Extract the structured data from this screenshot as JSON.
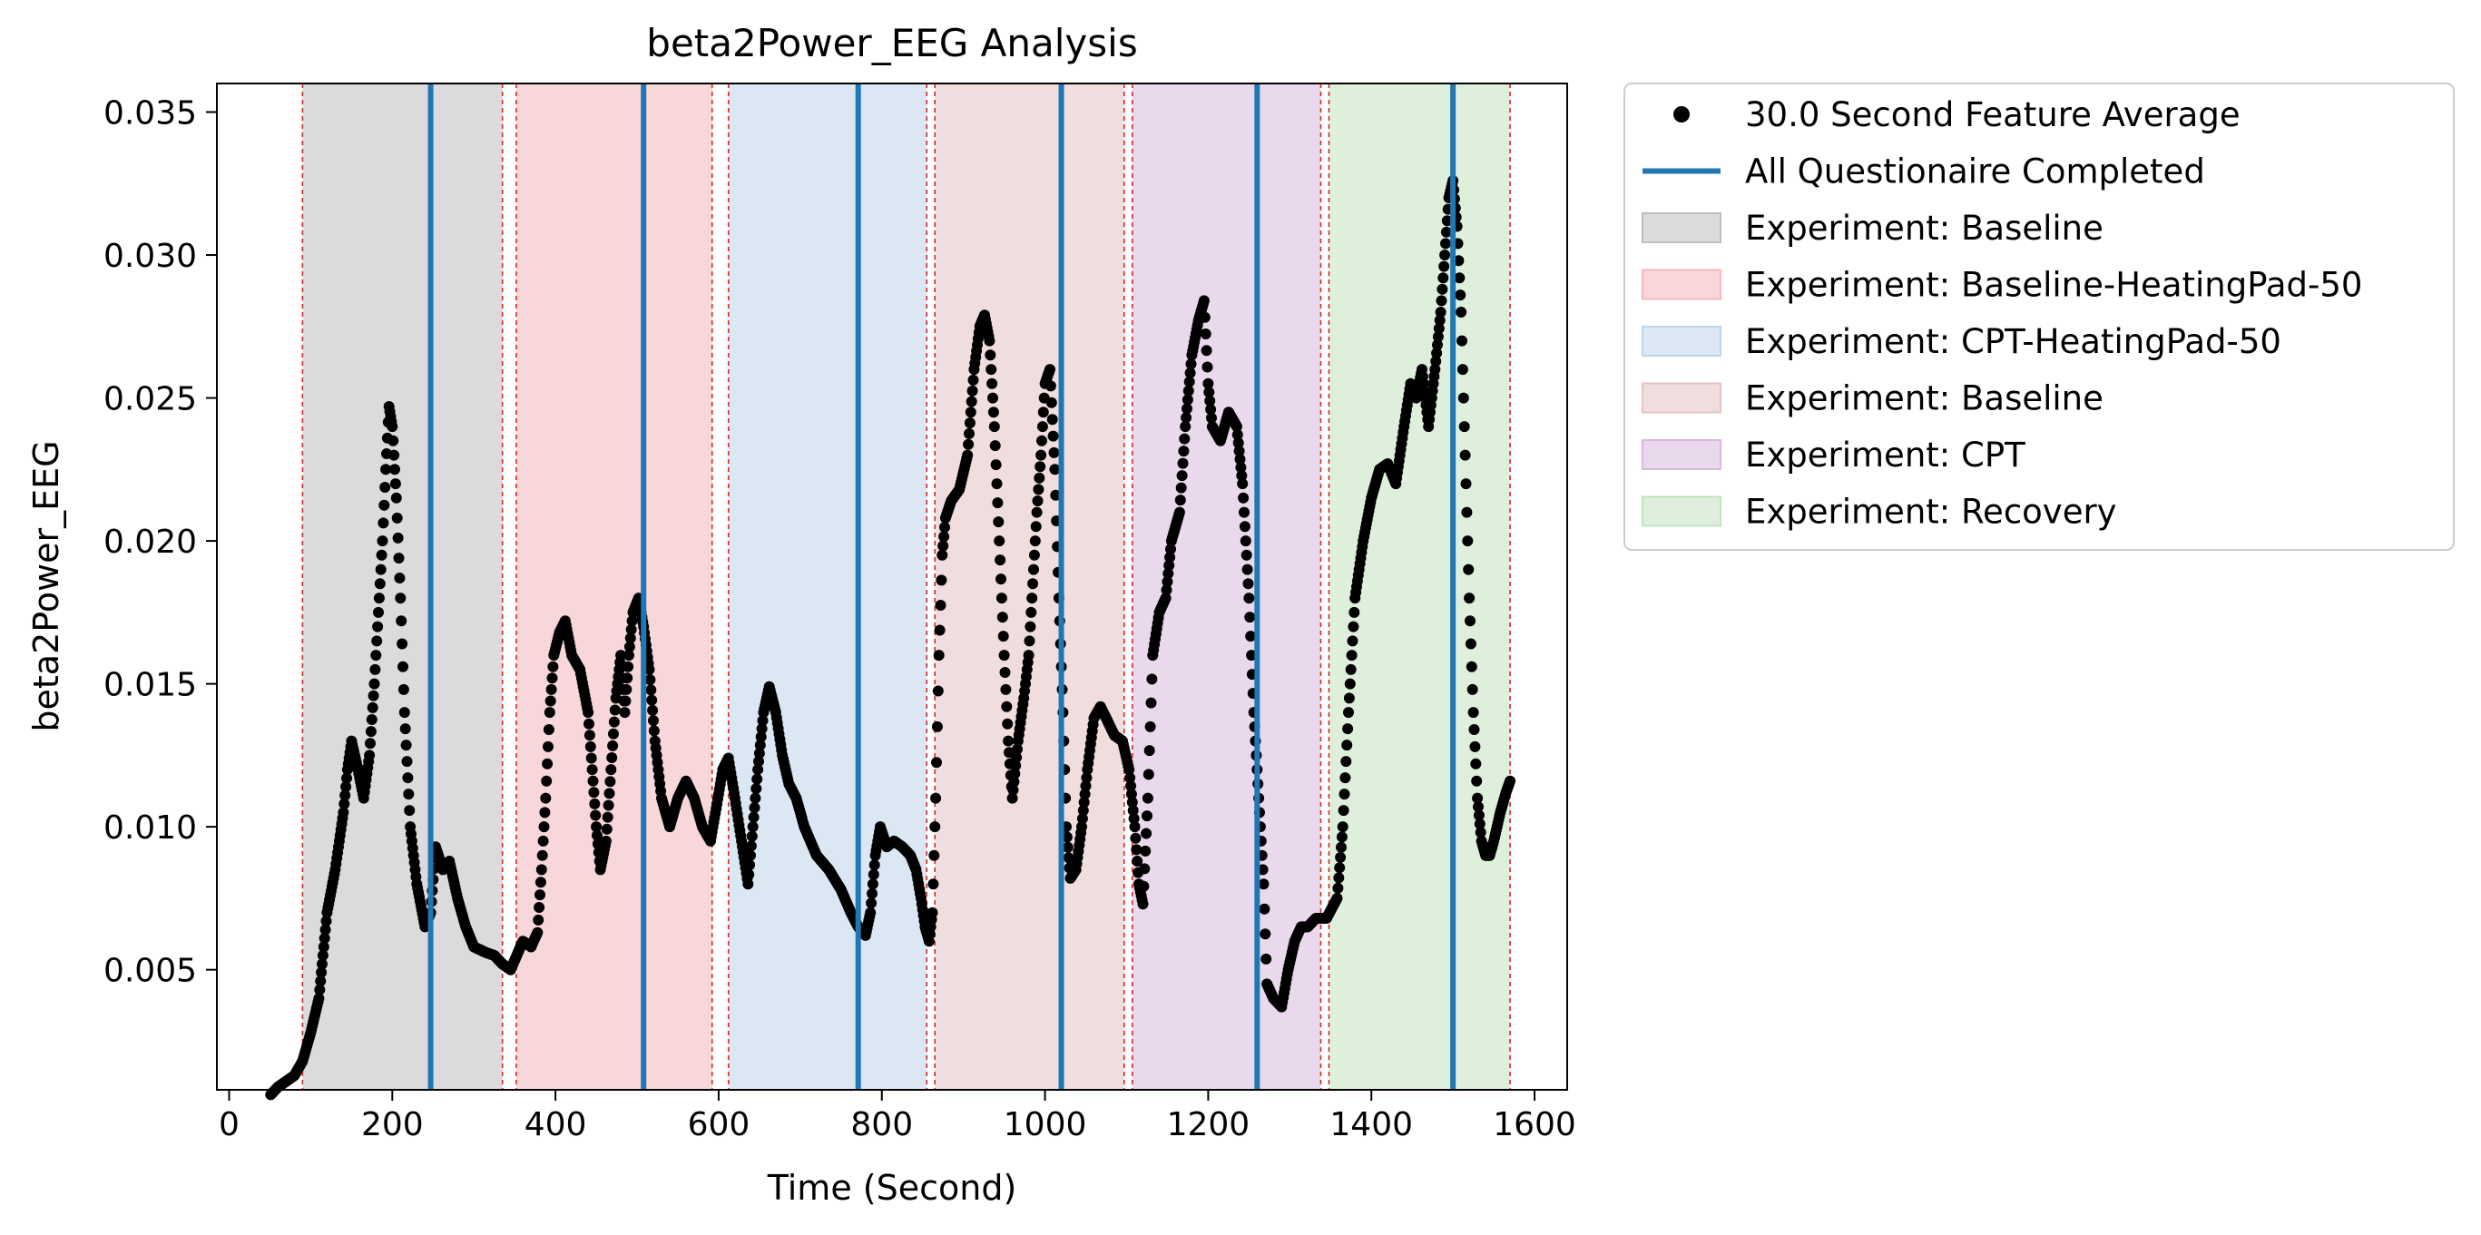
{
  "chart_data": {
    "type": "scatter",
    "title": "beta2Power_EEG Analysis",
    "xlabel": "Time (Second)",
    "ylabel": "beta2Power_EEG",
    "xlim": [
      -15,
      1640
    ],
    "ylim": [
      0.0008,
      0.036
    ],
    "xticks": [
      0,
      200,
      400,
      600,
      800,
      1000,
      1200,
      1400,
      1600
    ],
    "yticks": [
      0.005,
      0.01,
      0.015,
      0.02,
      0.025,
      0.03,
      0.035
    ],
    "ytick_labels": [
      "0.005",
      "0.010",
      "0.015",
      "0.020",
      "0.025",
      "0.030",
      "0.035"
    ],
    "grid": false,
    "legend_placement": "outside-right-top",
    "legend": [
      {
        "label": "30.0 Second Feature Average",
        "kind": "marker",
        "color": "#000000"
      },
      {
        "label": "All Questionaire Completed",
        "kind": "line",
        "color": "#1f77b4"
      },
      {
        "label": "Experiment: Baseline",
        "kind": "patch",
        "color": "#bdbdbd"
      },
      {
        "label": "Experiment: Baseline-HeatingPad-50",
        "kind": "patch",
        "color": "#f3b7bd"
      },
      {
        "label": "Experiment: CPT-HeatingPad-50",
        "kind": "patch",
        "color": "#bdd5ea"
      },
      {
        "label": "Experiment: Baseline",
        "kind": "patch",
        "color": "#e3c3c3"
      },
      {
        "label": "Experiment: CPT",
        "kind": "patch",
        "color": "#d8b8dc"
      },
      {
        "label": "Experiment: Recovery",
        "kind": "patch",
        "color": "#c2e3be"
      }
    ],
    "segments": [
      {
        "label": "Experiment: Baseline",
        "start": 90,
        "end": 335,
        "color": "#bdbdbd"
      },
      {
        "label": "Experiment: Baseline-HeatingPad-50",
        "start": 352,
        "end": 592,
        "color": "#f3b7bd"
      },
      {
        "label": "Experiment: CPT-HeatingPad-50",
        "start": 612,
        "end": 855,
        "color": "#bdd5ea"
      },
      {
        "label": "Experiment: Baseline",
        "start": 865,
        "end": 1097,
        "color": "#e3c3c3"
      },
      {
        "label": "Experiment: CPT",
        "start": 1107,
        "end": 1338,
        "color": "#d8b8dc"
      },
      {
        "label": "Experiment: Recovery",
        "start": 1348,
        "end": 1570,
        "color": "#c2e3be"
      }
    ],
    "segment_boundaries": [
      90,
      335,
      352,
      592,
      612,
      855,
      865,
      1097,
      1107,
      1338,
      1348,
      1570
    ],
    "questionnaire_completed": [
      247,
      508,
      771,
      1020,
      1260,
      1500
    ],
    "series": [
      {
        "label": "30.0 Second Feature Average",
        "color": "#000000",
        "points": [
          [
            50,
            0.0006
          ],
          [
            60,
            0.0009
          ],
          [
            70,
            0.0011
          ],
          [
            80,
            0.0013
          ],
          [
            90,
            0.0018
          ],
          [
            100,
            0.0028
          ],
          [
            110,
            0.004
          ],
          [
            120,
            0.007
          ],
          [
            130,
            0.0085
          ],
          [
            140,
            0.0105
          ],
          [
            145,
            0.012
          ],
          [
            150,
            0.013
          ],
          [
            158,
            0.012
          ],
          [
            165,
            0.011
          ],
          [
            172,
            0.0125
          ],
          [
            178,
            0.015
          ],
          [
            183,
            0.0175
          ],
          [
            188,
            0.02
          ],
          [
            192,
            0.0225
          ],
          [
            196,
            0.0247
          ],
          [
            200,
            0.024
          ],
          [
            205,
            0.0215
          ],
          [
            210,
            0.018
          ],
          [
            215,
            0.014
          ],
          [
            222,
            0.01
          ],
          [
            230,
            0.008
          ],
          [
            240,
            0.0065
          ],
          [
            247,
            0.007
          ],
          [
            253,
            0.0093
          ],
          [
            262,
            0.0085
          ],
          [
            270,
            0.0088
          ],
          [
            280,
            0.0075
          ],
          [
            290,
            0.0065
          ],
          [
            300,
            0.0058
          ],
          [
            315,
            0.0056
          ],
          [
            325,
            0.0055
          ],
          [
            335,
            0.0052
          ],
          [
            345,
            0.005
          ],
          [
            360,
            0.006
          ],
          [
            370,
            0.0058
          ],
          [
            378,
            0.0063
          ],
          [
            383,
            0.0085
          ],
          [
            388,
            0.011
          ],
          [
            393,
            0.014
          ],
          [
            398,
            0.016
          ],
          [
            405,
            0.0168
          ],
          [
            412,
            0.0172
          ],
          [
            420,
            0.016
          ],
          [
            430,
            0.0155
          ],
          [
            440,
            0.014
          ],
          [
            445,
            0.012
          ],
          [
            450,
            0.01
          ],
          [
            455,
            0.0085
          ],
          [
            462,
            0.0095
          ],
          [
            468,
            0.012
          ],
          [
            474,
            0.0145
          ],
          [
            480,
            0.016
          ],
          [
            485,
            0.014
          ],
          [
            490,
            0.016
          ],
          [
            495,
            0.0175
          ],
          [
            502,
            0.018
          ],
          [
            508,
            0.017
          ],
          [
            515,
            0.0155
          ],
          [
            522,
            0.013
          ],
          [
            530,
            0.011
          ],
          [
            540,
            0.01
          ],
          [
            550,
            0.011
          ],
          [
            560,
            0.0116
          ],
          [
            570,
            0.011
          ],
          [
            580,
            0.01
          ],
          [
            590,
            0.0095
          ],
          [
            598,
            0.0108
          ],
          [
            605,
            0.012
          ],
          [
            612,
            0.0124
          ],
          [
            620,
            0.011
          ],
          [
            628,
            0.0095
          ],
          [
            636,
            0.008
          ],
          [
            642,
            0.01
          ],
          [
            648,
            0.012
          ],
          [
            655,
            0.014
          ],
          [
            662,
            0.0149
          ],
          [
            670,
            0.014
          ],
          [
            678,
            0.0125
          ],
          [
            686,
            0.0115
          ],
          [
            695,
            0.011
          ],
          [
            705,
            0.01
          ],
          [
            720,
            0.009
          ],
          [
            735,
            0.0085
          ],
          [
            750,
            0.0078
          ],
          [
            762,
            0.007
          ],
          [
            771,
            0.0065
          ],
          [
            780,
            0.0062
          ],
          [
            786,
            0.007
          ],
          [
            792,
            0.009
          ],
          [
            798,
            0.01
          ],
          [
            806,
            0.0093
          ],
          [
            815,
            0.0095
          ],
          [
            825,
            0.0093
          ],
          [
            835,
            0.009
          ],
          [
            842,
            0.0085
          ],
          [
            848,
            0.0075
          ],
          [
            853,
            0.0065
          ],
          [
            858,
            0.006
          ],
          [
            862,
            0.007
          ],
          [
            866,
            0.011
          ],
          [
            870,
            0.016
          ],
          [
            874,
            0.0195
          ],
          [
            878,
            0.0208
          ],
          [
            885,
            0.0214
          ],
          [
            895,
            0.0218
          ],
          [
            905,
            0.023
          ],
          [
            913,
            0.026
          ],
          [
            920,
            0.0275
          ],
          [
            926,
            0.0279
          ],
          [
            932,
            0.027
          ],
          [
            938,
            0.024
          ],
          [
            944,
            0.02
          ],
          [
            950,
            0.016
          ],
          [
            955,
            0.013
          ],
          [
            960,
            0.011
          ],
          [
            967,
            0.013
          ],
          [
            974,
            0.0145
          ],
          [
            980,
            0.016
          ],
          [
            985,
            0.0185
          ],
          [
            990,
            0.021
          ],
          [
            995,
            0.023
          ],
          [
            1000,
            0.0255
          ],
          [
            1006,
            0.026
          ],
          [
            1012,
            0.0225
          ],
          [
            1017,
            0.018
          ],
          [
            1022,
            0.014
          ],
          [
            1026,
            0.01
          ],
          [
            1031,
            0.0082
          ],
          [
            1038,
            0.0085
          ],
          [
            1045,
            0.01
          ],
          [
            1052,
            0.012
          ],
          [
            1060,
            0.0138
          ],
          [
            1068,
            0.0142
          ],
          [
            1075,
            0.0138
          ],
          [
            1085,
            0.0132
          ],
          [
            1095,
            0.013
          ],
          [
            1103,
            0.012
          ],
          [
            1110,
            0.01
          ],
          [
            1115,
            0.008
          ],
          [
            1120,
            0.0073
          ],
          [
            1126,
            0.011
          ],
          [
            1132,
            0.016
          ],
          [
            1140,
            0.0175
          ],
          [
            1148,
            0.018
          ],
          [
            1155,
            0.02
          ],
          [
            1165,
            0.021
          ],
          [
            1172,
            0.024
          ],
          [
            1180,
            0.0265
          ],
          [
            1188,
            0.0277
          ],
          [
            1195,
            0.0284
          ],
          [
            1200,
            0.0255
          ],
          [
            1205,
            0.024
          ],
          [
            1215,
            0.0235
          ],
          [
            1225,
            0.0245
          ],
          [
            1235,
            0.024
          ],
          [
            1242,
            0.022
          ],
          [
            1250,
            0.018
          ],
          [
            1256,
            0.014
          ],
          [
            1262,
            0.011
          ],
          [
            1268,
            0.008
          ],
          [
            1272,
            0.0045
          ],
          [
            1280,
            0.004
          ],
          [
            1290,
            0.0037
          ],
          [
            1298,
            0.005
          ],
          [
            1306,
            0.006
          ],
          [
            1314,
            0.0065
          ],
          [
            1322,
            0.0065
          ],
          [
            1332,
            0.0068
          ],
          [
            1345,
            0.0068
          ],
          [
            1358,
            0.0075
          ],
          [
            1365,
            0.01
          ],
          [
            1372,
            0.014
          ],
          [
            1380,
            0.018
          ],
          [
            1390,
            0.02
          ],
          [
            1400,
            0.0215
          ],
          [
            1410,
            0.0225
          ],
          [
            1420,
            0.0227
          ],
          [
            1430,
            0.022
          ],
          [
            1440,
            0.024
          ],
          [
            1448,
            0.0255
          ],
          [
            1455,
            0.025
          ],
          [
            1462,
            0.026
          ],
          [
            1470,
            0.024
          ],
          [
            1478,
            0.026
          ],
          [
            1485,
            0.028
          ],
          [
            1490,
            0.03
          ],
          [
            1495,
            0.032
          ],
          [
            1500,
            0.0326
          ],
          [
            1505,
            0.031
          ],
          [
            1510,
            0.028
          ],
          [
            1515,
            0.023
          ],
          [
            1520,
            0.018
          ],
          [
            1525,
            0.014
          ],
          [
            1530,
            0.011
          ],
          [
            1535,
            0.0095
          ],
          [
            1540,
            0.009
          ],
          [
            1545,
            0.009
          ],
          [
            1550,
            0.0095
          ],
          [
            1558,
            0.0105
          ],
          [
            1565,
            0.0112
          ],
          [
            1570,
            0.0116
          ]
        ]
      }
    ]
  }
}
